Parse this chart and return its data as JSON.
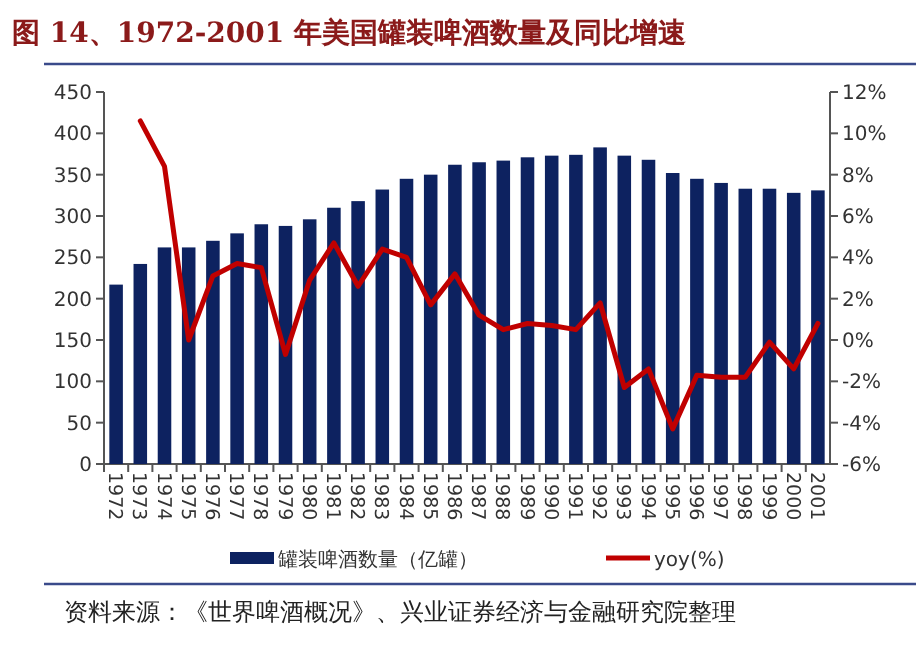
{
  "chart_data": {
    "type": "bar",
    "title": "图 14、1972-2001 年美国罐装啤酒数量及同比增速",
    "categories": [
      "1972",
      "1973",
      "1974",
      "1975",
      "1976",
      "1977",
      "1978",
      "1979",
      "1980",
      "1981",
      "1982",
      "1983",
      "1984",
      "1985",
      "1986",
      "1987",
      "1988",
      "1989",
      "1990",
      "1991",
      "1992",
      "1993",
      "1994",
      "1995",
      "1996",
      "1997",
      "1998",
      "1999",
      "2000",
      "2001"
    ],
    "series": [
      {
        "name": "罐装啤酒数量（亿罐）",
        "color": "#0d2260",
        "values": [
          217,
          242,
          262,
          262,
          270,
          279,
          290,
          288,
          296,
          310,
          318,
          332,
          345,
          350,
          362,
          365,
          367,
          371,
          373,
          374,
          383,
          373,
          368,
          352,
          345,
          340,
          333,
          333,
          328,
          331
        ]
      },
      {
        "name": "yoy(%)",
        "type": "line",
        "axis": "y2",
        "color": "#c00000",
        "values": [
          null,
          10.6,
          8.4,
          0.0,
          3.1,
          3.7,
          3.5,
          -0.7,
          2.9,
          4.7,
          2.6,
          4.4,
          4.0,
          1.7,
          3.2,
          1.2,
          0.5,
          0.8,
          0.7,
          0.5,
          1.8,
          -2.3,
          -1.4,
          -4.3,
          -1.7,
          -1.8,
          -1.8,
          -0.1,
          -1.4,
          0.8
        ]
      }
    ],
    "ylim": [
      0,
      450
    ],
    "yticks": [
      0,
      50,
      100,
      150,
      200,
      250,
      300,
      350,
      400,
      450
    ],
    "y2lim": [
      -6,
      12
    ],
    "y2ticks": [
      {
        "value": -6,
        "label": "-6%"
      },
      {
        "value": -4,
        "label": "-4%"
      },
      {
        "value": -2,
        "label": "-2%"
      },
      {
        "value": 0,
        "label": "0%"
      },
      {
        "value": 2,
        "label": "2%"
      },
      {
        "value": 4,
        "label": "4%"
      },
      {
        "value": 6,
        "label": "6%"
      },
      {
        "value": 8,
        "label": "8%"
      },
      {
        "value": 10,
        "label": "10%"
      },
      {
        "value": 12,
        "label": "12%"
      }
    ],
    "legend": "bottom",
    "annotations": [
      "资料来源：《世界啤酒概况》、兴业证券经济与金融研究院整理"
    ]
  }
}
